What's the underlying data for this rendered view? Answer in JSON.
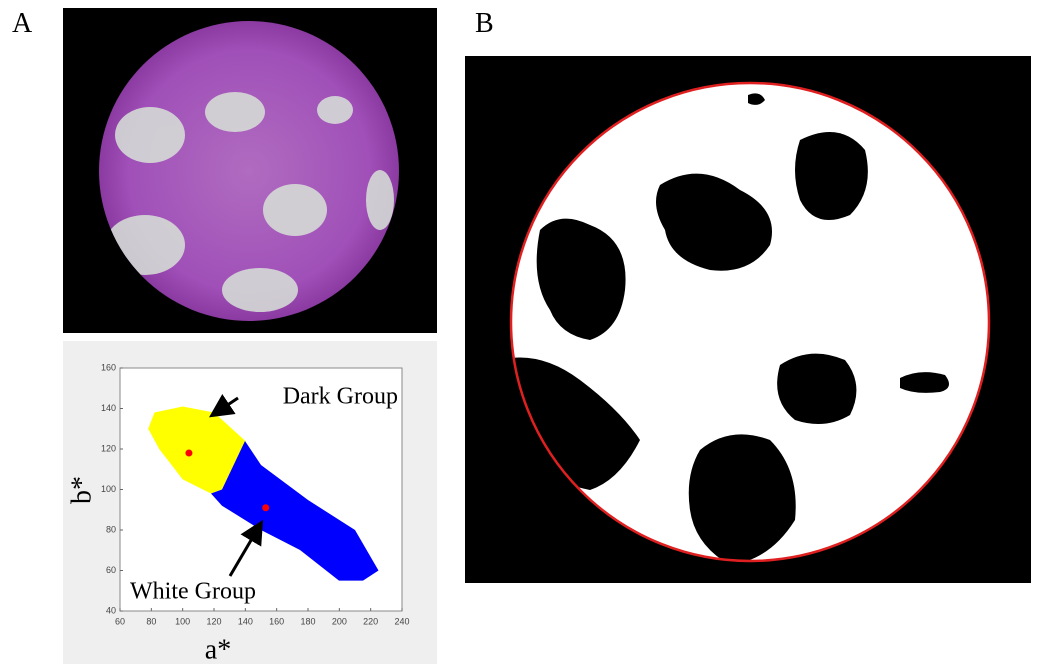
{
  "panels": {
    "a": {
      "label": "A"
    },
    "b": {
      "label": "B"
    }
  },
  "chart_data": {
    "type": "scatter",
    "x_label": "a*",
    "y_label": "b*",
    "xlim": [
      60,
      240
    ],
    "ylim": [
      40,
      160
    ],
    "xticks": [
      60,
      80,
      100,
      120,
      140,
      160,
      180,
      200,
      220,
      240
    ],
    "yticks": [
      40,
      60,
      80,
      100,
      120,
      140,
      160
    ],
    "x": [
      104,
      153
    ],
    "values": [
      118,
      91
    ],
    "color": "#ff0000",
    "annotations": [
      "Dark Group",
      "White Group"
    ],
    "clusters": [
      {
        "color": "#ffff00"
      },
      {
        "color": "#0000ff"
      }
    ]
  }
}
